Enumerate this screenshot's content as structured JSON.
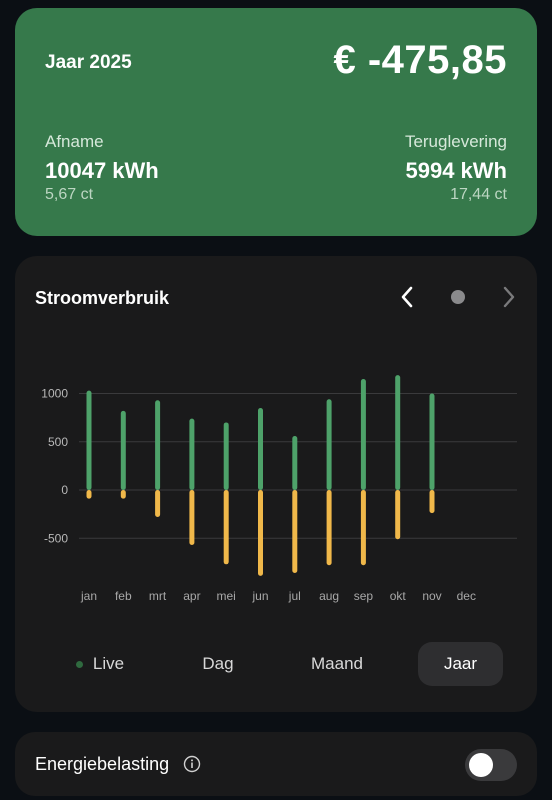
{
  "summary": {
    "period": "Jaar 2025",
    "total": "€ -475,85",
    "consumption": {
      "label": "Afname",
      "value": "10047 kWh",
      "price": "5,67 ct"
    },
    "return": {
      "label": "Teruglevering",
      "value": "5994 kWh",
      "price": "17,44 ct"
    }
  },
  "chart_card": {
    "title": "Stroomverbruik",
    "prev_icon": "chevron-left-icon",
    "page_indicator_icon": "dot-icon",
    "next_icon": "chevron-right-icon"
  },
  "chart_data": {
    "type": "bar",
    "categories": [
      "jan",
      "feb",
      "mrt",
      "apr",
      "mei",
      "jun",
      "jul",
      "aug",
      "sep",
      "okt",
      "nov",
      "dec"
    ],
    "series": [
      {
        "values": [
          1030,
          820,
          930,
          740,
          700,
          850,
          560,
          940,
          1150,
          1190,
          1000,
          null
        ],
        "color": "#4ea26a"
      },
      {
        "values": [
          -90,
          -90,
          -280,
          -570,
          -770,
          -890,
          -860,
          -780,
          -780,
          -510,
          -240,
          null
        ],
        "color": "#f0b84a"
      }
    ],
    "yticks": [
      1000,
      500,
      0,
      -500
    ],
    "ytick_labels": [
      "1000",
      "500",
      "0",
      "-500"
    ],
    "ylim": [
      -900,
      1200
    ],
    "grid": true,
    "title": "",
    "xlabel": "",
    "ylabel": ""
  },
  "tabs": [
    {
      "label": "Live",
      "active": false
    },
    {
      "label": "Dag",
      "active": false
    },
    {
      "label": "Maand",
      "active": false
    },
    {
      "label": "Jaar",
      "active": true
    }
  ],
  "energy_tax": {
    "label": "Energiebelasting",
    "info_icon": "info-icon",
    "enabled": false
  },
  "colors": {
    "summary_bg": "#36794b",
    "card_bg": "#1a1a1b",
    "positive": "#4ea26a",
    "negative": "#f0b84a"
  }
}
